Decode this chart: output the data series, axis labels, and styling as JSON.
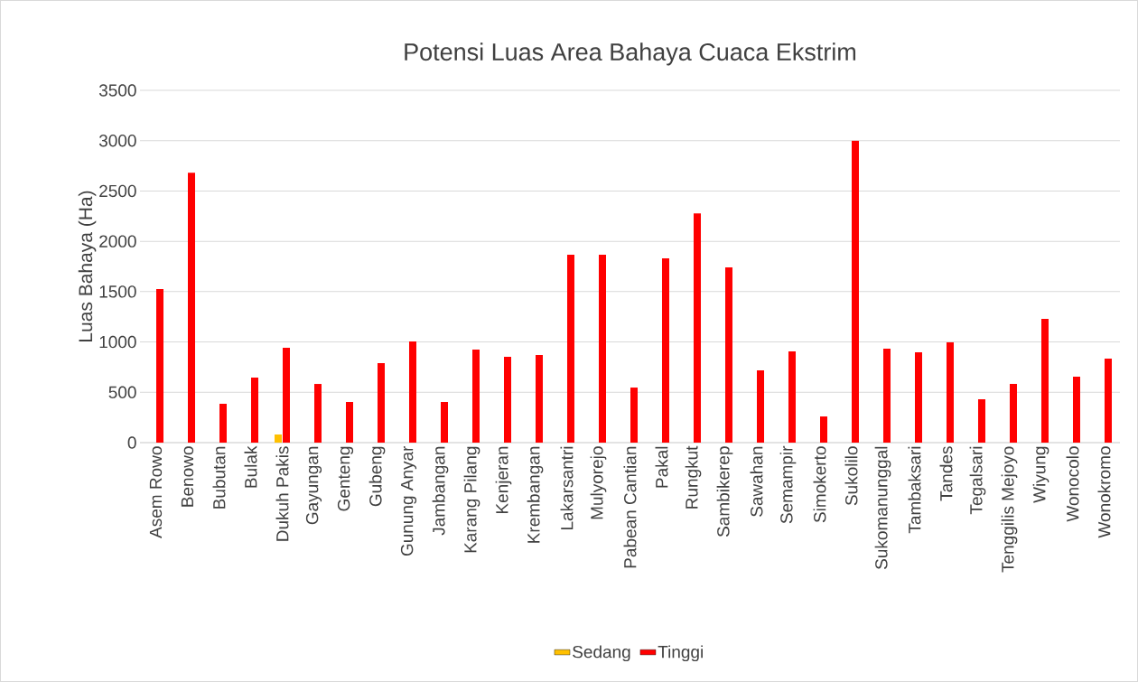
{
  "chart_data": {
    "type": "bar",
    "title": "Potensi Luas Area Bahaya Cuaca Ekstrim",
    "ylabel": "Luas Bahaya (Ha)",
    "categories": [
      "Asem Rowo",
      "Benowo",
      "Bubutan",
      "Bulak",
      "Dukuh Pakis",
      "Gayungan",
      "Genteng",
      "Gubeng",
      "Gunung Anyar",
      "Jambangan",
      "Karang Pilang",
      "Kenjeran",
      "Krembangan",
      "Lakarsantri",
      "Mulyorejo",
      "Pabean Cantian",
      "Pakal",
      "Rungkut",
      "Sambikerep",
      "Sawahan",
      "Semampir",
      "Simokerto",
      "Sukolilo",
      "Sukomanunggal",
      "Tambaksari",
      "Tandes",
      "Tegalsari",
      "Tenggilis Mejoyo",
      "Wiyung",
      "Wonocolo",
      "Wonokromo"
    ],
    "series": [
      {
        "name": "Sedang",
        "color": "#ffc000",
        "values": [
          null,
          null,
          null,
          null,
          80,
          null,
          null,
          null,
          null,
          null,
          null,
          null,
          null,
          null,
          null,
          null,
          null,
          null,
          null,
          null,
          null,
          null,
          null,
          null,
          null,
          null,
          null,
          null,
          null,
          null,
          null
        ]
      },
      {
        "name": "Tinggi",
        "color": "#ff0000",
        "values": [
          1525,
          2680,
          385,
          646,
          942,
          583,
          404,
          790,
          1005,
          404,
          924,
          852,
          870,
          1866,
          1866,
          547,
          1830,
          2278,
          1740,
          718,
          906,
          260,
          3000,
          933,
          897,
          996,
          430,
          583,
          1229,
          655,
          834
        ]
      }
    ],
    "ylim": [
      0,
      3500
    ],
    "yticks": [
      0,
      500,
      1000,
      1500,
      2000,
      2500,
      3000,
      3500
    ],
    "grid": "y",
    "legend": "bottom"
  }
}
